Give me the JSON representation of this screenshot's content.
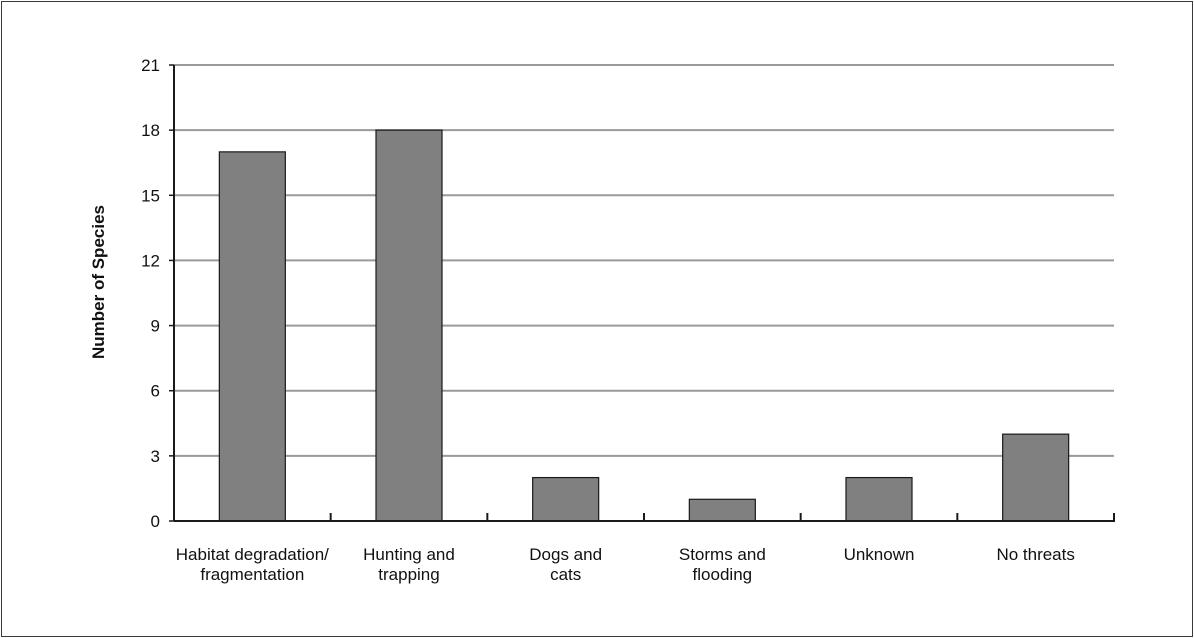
{
  "chart_data": {
    "type": "bar",
    "title": "",
    "xlabel": "",
    "ylabel": "Number of Species",
    "categories": [
      [
        "Habitat degradation/",
        "fragmentation"
      ],
      [
        "Hunting and",
        "trapping"
      ],
      [
        "Dogs and",
        "cats"
      ],
      [
        "Storms and",
        "flooding"
      ],
      [
        "Unknown"
      ],
      [
        "No threats"
      ]
    ],
    "values": [
      17,
      18,
      2,
      1,
      2,
      4
    ],
    "ylim": [
      0,
      21
    ],
    "yticks": [
      0,
      3,
      6,
      9,
      12,
      15,
      18,
      21
    ],
    "grid": true,
    "legend": "none",
    "colors": {
      "bar_fill": "#808080",
      "bar_stroke": "#1a1a1a",
      "grid": "#9a9a9a",
      "axis": "#1a1a1a"
    }
  }
}
